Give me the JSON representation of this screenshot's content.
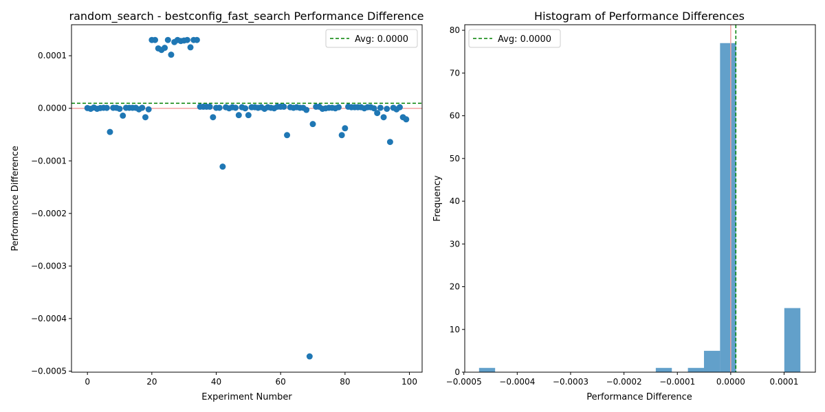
{
  "chart_data": [
    {
      "type": "scatter",
      "title": "random_search - bestconfig_fast_search Performance Difference",
      "xlabel": "Experiment Number",
      "ylabel": "Performance Difference",
      "xlim": [
        -4.95,
        103.95
      ],
      "ylim": [
        -0.000502,
        0.000159
      ],
      "xticks": [
        0,
        20,
        40,
        60,
        80,
        100
      ],
      "xtick_labels": [
        "0",
        "20",
        "40",
        "60",
        "80",
        "100"
      ],
      "yticks": [
        -0.0005,
        -0.0004,
        -0.0003,
        -0.0002,
        -0.0001,
        0.0,
        0.0001
      ],
      "ytick_labels": [
        "−0.0005",
        "−0.0004",
        "−0.0003",
        "−0.0002",
        "−0.0001",
        "0.0000",
        "0.0001"
      ],
      "grid": false,
      "legend": {
        "placement": "top-right",
        "entries": [
          "Avg: 0.0000"
        ]
      },
      "point_color": "#1f77b4",
      "reference_lines": [
        {
          "axis": "y",
          "value": 0.0,
          "color": "#f4a3a3",
          "style": "solid"
        },
        {
          "axis": "y",
          "value": 9.6e-06,
          "color": "#008000",
          "style": "dashed",
          "label": "Avg: 0.0000"
        }
      ],
      "x": [
        0,
        1,
        2,
        3,
        4,
        5,
        6,
        7,
        8,
        9,
        10,
        11,
        12,
        13,
        14,
        15,
        16,
        17,
        18,
        19,
        20,
        21,
        22,
        23,
        24,
        25,
        26,
        27,
        28,
        29,
        30,
        31,
        32,
        33,
        34,
        35,
        36,
        37,
        38,
        39,
        40,
        41,
        42,
        43,
        44,
        45,
        46,
        47,
        48,
        49,
        50,
        51,
        52,
        53,
        54,
        55,
        56,
        57,
        58,
        59,
        60,
        61,
        62,
        63,
        64,
        65,
        66,
        67,
        68,
        69,
        70,
        71,
        72,
        73,
        74,
        75,
        76,
        77,
        78,
        79,
        80,
        81,
        82,
        83,
        84,
        85,
        86,
        87,
        88,
        89,
        90,
        91,
        92,
        93,
        94,
        95,
        96,
        97,
        98,
        99
      ],
      "y": [
        5e-07,
        -1e-06,
        1.5e-06,
        -1e-06,
        5e-07,
        1e-06,
        8e-07,
        -4.5e-05,
        1e-06,
        1e-06,
        -1e-06,
        -1.4e-05,
        1e-06,
        1e-06,
        1e-06,
        1e-06,
        -2e-06,
        1e-06,
        -1.7e-05,
        -2e-06,
        0.00013,
        0.00013,
        0.000114,
        0.000111,
        0.000115,
        0.00013,
        0.000102,
        0.000126,
        0.00013,
        0.000128,
        0.000129,
        0.00013,
        0.000116,
        0.00013,
        0.00013,
        3e-06,
        3e-06,
        3e-06,
        3e-06,
        -1.7e-05,
        1e-06,
        1e-06,
        -0.000111,
        2e-06,
        0.0,
        2e-06,
        1e-06,
        -1.3e-05,
        2e-06,
        0.0,
        -1.3e-05,
        2e-06,
        2e-06,
        1e-06,
        2e-06,
        -1e-06,
        2e-06,
        1e-06,
        0.0,
        3e-06,
        3e-06,
        3e-06,
        -5.1e-05,
        2e-06,
        1e-06,
        2e-06,
        1e-06,
        1e-06,
        -3e-06,
        -0.000472,
        -3e-05,
        3e-06,
        3e-06,
        -1e-06,
        0.0,
        1e-06,
        1e-06,
        0.0,
        2e-06,
        -5.1e-05,
        -3.8e-05,
        3e-06,
        2e-06,
        2e-06,
        2e-06,
        2e-06,
        0.0,
        2e-06,
        2e-06,
        0.0,
        -9e-06,
        1e-06,
        -1.7e-05,
        -1e-06,
        -6.4e-05,
        1e-06,
        -2e-06,
        2e-06,
        -1.7e-05,
        -2.1e-05
      ]
    },
    {
      "type": "bar",
      "title": "Histogram of Performance Differences",
      "xlabel": "Performance Difference",
      "ylabel": "Frequency",
      "xlim": [
        -0.0004983,
        0.0001586
      ],
      "ylim": [
        0,
        81.3
      ],
      "xticks": [
        -0.0005,
        -0.0004,
        -0.0003,
        -0.0002,
        -0.0001,
        0.0,
        0.0001
      ],
      "xtick_labels": [
        "−0.0005",
        "−0.0004",
        "−0.0003",
        "−0.0002",
        "−0.0001",
        "0.0000",
        "0.0001"
      ],
      "yticks": [
        0,
        10,
        20,
        30,
        40,
        50,
        60,
        70,
        80
      ],
      "ytick_labels": [
        "0",
        "10",
        "20",
        "30",
        "40",
        "50",
        "60",
        "70",
        "80"
      ],
      "grid": false,
      "legend": {
        "placement": "top-left",
        "entries": [
          "Avg: 0.0000"
        ]
      },
      "bar_color": "#1f77b4",
      "bar_opacity": 0.7,
      "bin_width": 3.01e-05,
      "bins": [
        {
          "start": -0.0004715,
          "count": 1
        },
        {
          "start": -0.0001404,
          "count": 1
        },
        {
          "start": -8.02e-05,
          "count": 1
        },
        {
          "start": -5.01e-05,
          "count": 5
        },
        {
          "start": -2e-05,
          "count": 77
        },
        {
          "start": 0.0001004,
          "count": 15
        }
      ],
      "reference_lines": [
        {
          "axis": "x",
          "value": 0.0,
          "color": "#f4a3a3",
          "style": "solid"
        },
        {
          "axis": "x",
          "value": 9.6e-06,
          "color": "#008000",
          "style": "dashed",
          "label": "Avg: 0.0000"
        }
      ]
    }
  ]
}
